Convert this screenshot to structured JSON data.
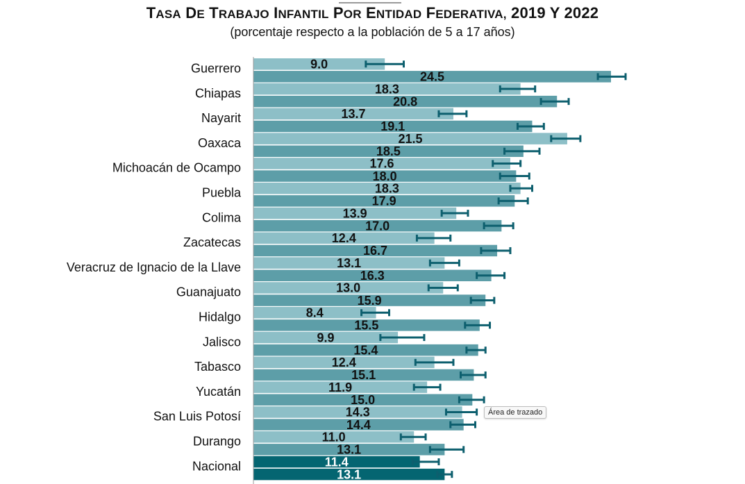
{
  "chart_data": {
    "type": "bar",
    "orientation": "horizontal",
    "title": "Tasa de trabajo infantil por entidad federativa, 2019 y 2022",
    "subtitle": "(porcentaje respecto a la población de 5 a 17 años)",
    "categories": [
      "Guerrero",
      "Chiapas",
      "Nayarit",
      "Oaxaca",
      "Michoacán de Ocampo",
      "Puebla",
      "Colima",
      "Zacatecas",
      "Veracruz de Ignacio de la Llave",
      "Guanajuato",
      "Hidalgo",
      "Jalisco",
      "Tabasco",
      "Yucatán",
      "San Luis Potosí",
      "Durango",
      "Nacional"
    ],
    "series": [
      {
        "values": [
          9.0,
          18.3,
          13.7,
          21.5,
          17.6,
          18.3,
          13.9,
          12.4,
          13.1,
          13.0,
          8.4,
          9.9,
          12.4,
          11.9,
          14.3,
          11.0,
          11.4
        ],
        "error_low": [
          7.7,
          16.9,
          12.7,
          20.4,
          16.4,
          17.6,
          12.9,
          11.2,
          12.1,
          12.0,
          7.4,
          8.7,
          11.1,
          11.0,
          13.2,
          10.1,
          10.9
        ],
        "error_high": [
          10.3,
          19.3,
          14.6,
          22.4,
          18.3,
          19.1,
          14.7,
          13.5,
          14.1,
          14.0,
          9.3,
          11.7,
          13.7,
          12.8,
          15.3,
          11.8,
          12.7
        ],
        "colors": [
          "#8dbfc7",
          "#8dbfc7",
          "#8dbfc7",
          "#8dbfc7",
          "#8dbfc7",
          "#8dbfc7",
          "#8dbfc7",
          "#8dbfc7",
          "#8dbfc7",
          "#8dbfc7",
          "#8dbfc7",
          "#8dbfc7",
          "#8dbfc7",
          "#8dbfc7",
          "#8dbfc7",
          "#8dbfc7",
          "#046571"
        ]
      },
      {
        "values": [
          24.5,
          20.8,
          19.1,
          18.5,
          18.0,
          17.9,
          17.0,
          16.7,
          16.3,
          15.9,
          15.5,
          15.4,
          15.1,
          15.0,
          14.4,
          13.1,
          13.1
        ],
        "error_low": [
          23.6,
          19.7,
          18.1,
          17.2,
          16.9,
          16.8,
          15.8,
          15.6,
          15.3,
          14.9,
          14.5,
          14.6,
          14.2,
          14.1,
          13.5,
          12.1,
          12.6
        ],
        "error_high": [
          25.5,
          21.6,
          19.9,
          19.6,
          18.9,
          18.8,
          17.8,
          17.6,
          17.2,
          16.5,
          16.2,
          15.9,
          15.9,
          15.8,
          15.2,
          14.4,
          13.6
        ],
        "colors": [
          "#5d9ea8",
          "#5d9ea8",
          "#5d9ea8",
          "#5d9ea8",
          "#5d9ea8",
          "#5d9ea8",
          "#5d9ea8",
          "#5d9ea8",
          "#5d9ea8",
          "#5d9ea8",
          "#5d9ea8",
          "#5d9ea8",
          "#5d9ea8",
          "#5d9ea8",
          "#5d9ea8",
          "#5d9ea8",
          "#046571"
        ]
      }
    ],
    "value_labels": {
      "s0": [
        "9.0",
        "18.3",
        "13.7",
        "21.5",
        "17.6",
        "18.3",
        "13.9",
        "12.4",
        "13.1",
        "13.0",
        "8.4",
        "9.9",
        "12.4",
        "11.9",
        "14.3",
        "11.0",
        "11.4"
      ],
      "s1": [
        "24.5",
        "20.8",
        "19.1",
        "18.5",
        "18.0",
        "17.9",
        "17.0",
        "16.7",
        "16.3",
        "15.9",
        "15.5",
        "15.4",
        "15.1",
        "15.0",
        "14.4",
        "13.1",
        "13.1"
      ]
    },
    "error_bar_color": "#0d5f6e",
    "xlim": [
      0,
      26
    ],
    "grid": false,
    "legend": "none"
  },
  "tooltip": {
    "text": "Área de trazado"
  }
}
